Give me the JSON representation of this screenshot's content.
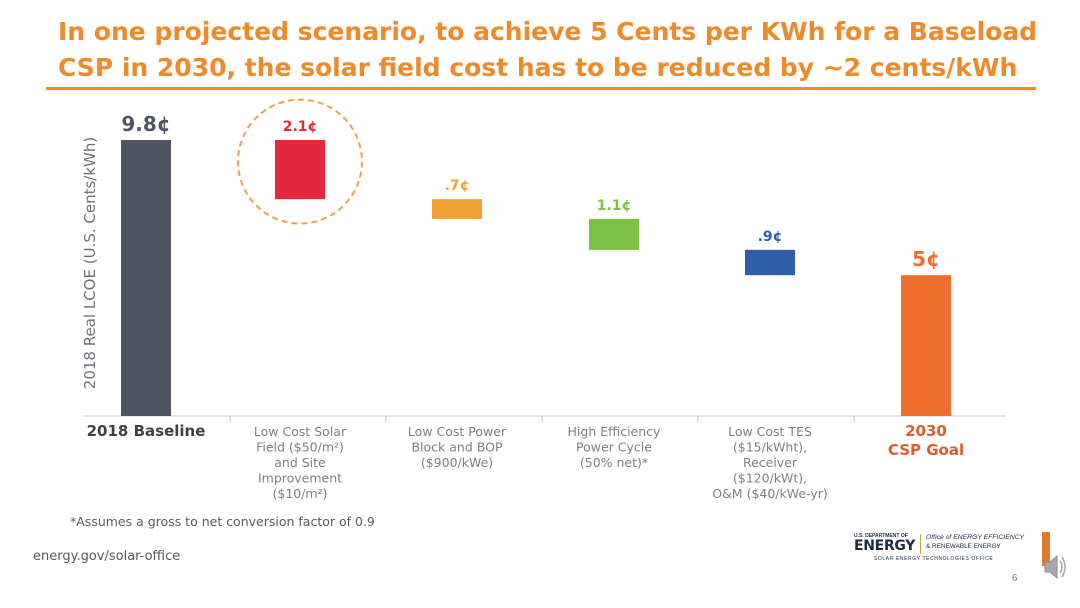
{
  "slide": {
    "title_lines": [
      "In one projected scenario, to achieve 5 Cents per KWh for a Baseload",
      "CSP in 2030, the solar field cost has to be reduced by ~2 cents/kWh"
    ],
    "footnote": "*Assumes a gross to net conversion factor of 0.9",
    "site_url": "energy.gov/solar-office",
    "page_number": "6"
  },
  "logo": {
    "department": "U.S. DEPARTMENT OF",
    "name": "ENERGY",
    "office_line1": "Office of ENERGY EFFICIENCY",
    "office_line2": "& RENEWABLE ENERGY",
    "sub_office": "SOLAR ENERGY TECHNOLOGIES OFFICE"
  },
  "chart_data": {
    "type": "bar",
    "subtype": "waterfall",
    "title": "",
    "ylabel": "2018 Real LCOE (U.S. Cents/kWh)",
    "xlabel": "",
    "ylim": [
      0,
      9.8
    ],
    "grid": false,
    "legend": "none",
    "categories": [
      [
        "2018 Baseline"
      ],
      [
        "Low Cost Solar",
        "Field ($50/m²)",
        "and Site",
        "Improvement",
        "($10/m²)"
      ],
      [
        "Low Cost Power",
        "Block and BOP",
        "($900/kWe)"
      ],
      [
        "High Efficiency",
        "Power Cycle",
        "(50% net)*"
      ],
      [
        "Low Cost TES",
        "($15/kWht),",
        "Receiver",
        "($120/kWt),",
        "O&M ($40/kWe-yr)"
      ],
      [
        "2030",
        "CSP Goal"
      ]
    ],
    "bars": [
      {
        "kind": "total",
        "value": 9.8,
        "label": "9.8¢",
        "color": "#4f5560"
      },
      {
        "kind": "reduction",
        "value": 2.1,
        "label": "2.1¢",
        "color": "#e2293d",
        "highlighted": true
      },
      {
        "kind": "reduction",
        "value": 0.7,
        "label": ".7¢",
        "color": "#f0a030"
      },
      {
        "kind": "reduction",
        "value": 1.1,
        "label": "1.1¢",
        "color": "#7ac143"
      },
      {
        "kind": "reduction",
        "value": 0.9,
        "label": ".9¢",
        "color": "#2f5ea8"
      },
      {
        "kind": "total",
        "value": 5.0,
        "label": "5¢",
        "color": "#ef6e2e"
      }
    ],
    "label_colors": [
      "#4f5560",
      "#e2293d",
      "#f0a030",
      "#7ac143",
      "#2f5ea8",
      "#ef6e2e"
    ],
    "category_colors": [
      "#3c4049",
      "#7a7f86",
      "#7a7f86",
      "#7a7f86",
      "#7a7f86",
      "#e2592a"
    ]
  }
}
